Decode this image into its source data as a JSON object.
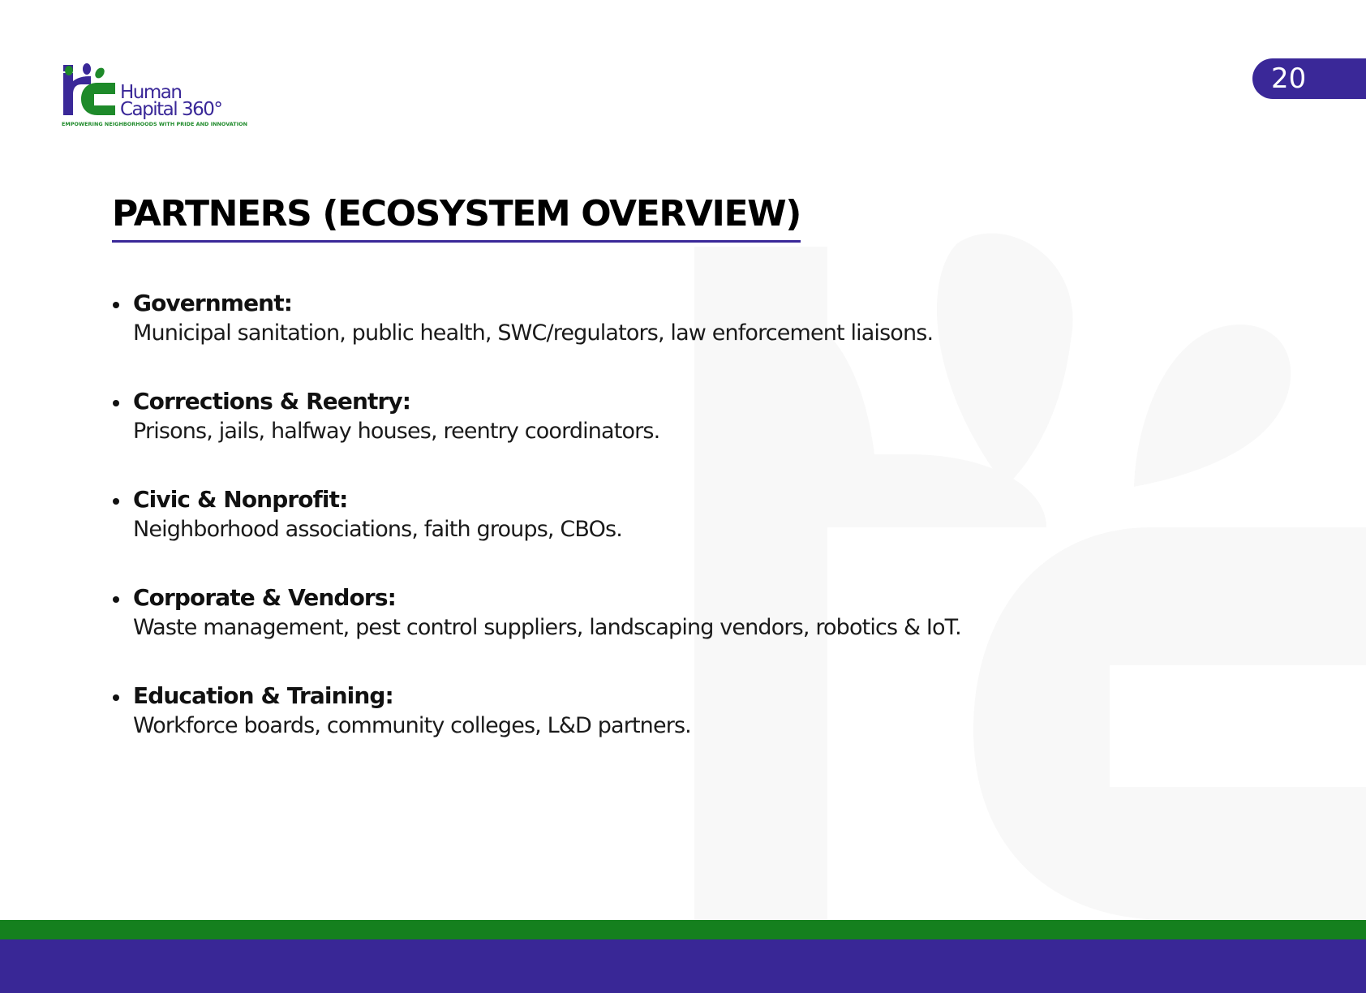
{
  "brand": {
    "name_line1": "Human",
    "name_line2": "Capital 360°",
    "tagline": "EMPOWERING NEIGHBORHOODS WITH PRIDE AND INNOVATION",
    "primary_color": "#3a2898",
    "secondary_color": "#15801e"
  },
  "page_number": "20",
  "title": "PARTNERS (ECOSYSTEM OVERVIEW)",
  "partners": [
    {
      "label": "Government:",
      "description": "Municipal sanitation, public health, SWC/regulators, law enforcement liaisons."
    },
    {
      "label": "Corrections & Reentry:",
      "description": "Prisons, jails, halfway houses, reentry coordinators."
    },
    {
      "label": "Civic & Nonprofit:",
      "description": "Neighborhood associations, faith groups, CBOs."
    },
    {
      "label": "Corporate & Vendors:",
      "description": "Waste management, pest control suppliers, landscaping vendors, robotics & IoT."
    },
    {
      "label": "Education & Training:",
      "description": "Workforce boards, community colleges, L&D partners."
    }
  ]
}
